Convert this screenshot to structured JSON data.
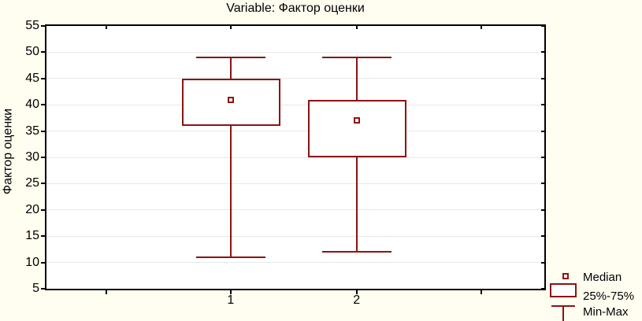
{
  "title": "Variable: Фактор оценки",
  "y_axis": {
    "label": "Фактор оценки",
    "tick_labels": [
      "5",
      "10",
      "15",
      "20",
      "25",
      "30",
      "35",
      "40",
      "45",
      "50",
      "55"
    ]
  },
  "x_axis": {
    "tick_labels": [
      "1",
      "2"
    ]
  },
  "legend": {
    "entries": [
      {
        "symbol": "median-marker",
        "label": "Median"
      },
      {
        "symbol": "iqr-box",
        "label": "25%-75%"
      },
      {
        "symbol": "min-max-whisker",
        "label": "Min-Max"
      }
    ]
  },
  "colors": {
    "series": "#8b1412",
    "background": "#fffef0",
    "plot_background": "#ffffff",
    "grid": "#e8e8e8",
    "frame": "#000000",
    "text": "#000000"
  },
  "chart_data": {
    "type": "boxplot",
    "title": "Variable: Фактор оценки",
    "xlabel": "",
    "ylabel": "Фактор оценки",
    "ylim": [
      5,
      55
    ],
    "ytick_step": 5,
    "yticks": [
      5,
      10,
      15,
      20,
      25,
      30,
      35,
      40,
      45,
      50,
      55
    ],
    "categories": [
      "1",
      "2"
    ],
    "series": [
      {
        "category": "1",
        "min": 11,
        "q1": 36,
        "median": 41,
        "q3": 45,
        "max": 49
      },
      {
        "category": "2",
        "min": 12,
        "q1": 30,
        "median": 37,
        "q3": 41,
        "max": 49
      }
    ],
    "grid": true,
    "legend_position": "bottom-right",
    "legend_entries": [
      "Median",
      "25%-75%",
      "Min-Max"
    ]
  }
}
